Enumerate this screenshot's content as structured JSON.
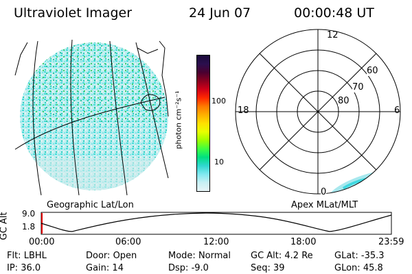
{
  "header": {
    "instrument": "Ultraviolet Imager",
    "date": "24 Jun 07",
    "time": "00:00:48 UT"
  },
  "left_panel": {
    "label": "Geographic Lat/Lon"
  },
  "right_panel": {
    "label": "Apex MLat/MLT",
    "mlt_labels": {
      "top": "12",
      "left": "18",
      "right": "6",
      "bottom": "0"
    },
    "lat_labels": [
      "60",
      "70",
      "80"
    ]
  },
  "colorbar": {
    "unit_label": "photon cm⁻²s⁻¹",
    "ticks": [
      "100",
      "10"
    ],
    "colors": [
      "#1a0a3a",
      "#2b0f4e",
      "#4a0030",
      "#8b0020",
      "#d00018",
      "#ff2800",
      "#ff7a00",
      "#ffb000",
      "#ffe000",
      "#e8ff00",
      "#a0ff00",
      "#40ff40",
      "#00e080",
      "#30d8d0",
      "#80e8f0",
      "#c8f0f4",
      "#e8f4f6"
    ]
  },
  "altitude_plot": {
    "ylabel": "GC Alt",
    "yticks": [
      "9.0",
      "1.8"
    ],
    "xticks": [
      "00:00",
      "06:00",
      "12:00",
      "18:00",
      "23:59"
    ]
  },
  "footer": {
    "rows": [
      [
        {
          "label": "Flt:",
          "value": "LBHL"
        },
        {
          "label": "Door:",
          "value": "Open"
        },
        {
          "label": "Mode:",
          "value": "Normal"
        },
        {
          "label": "GC Alt:",
          "value": "4.2 Re"
        },
        {
          "label": "GLat:",
          "value": "-35.3"
        }
      ],
      [
        {
          "label": "IP:",
          "value": "36.0"
        },
        {
          "label": "Gain:",
          "value": "14"
        },
        {
          "label": "Dsp:",
          "value": "-9.0"
        },
        {
          "label": "Seq:",
          "value": "39"
        },
        {
          "label": "GLon:",
          "value": "45.8"
        }
      ]
    ]
  }
}
